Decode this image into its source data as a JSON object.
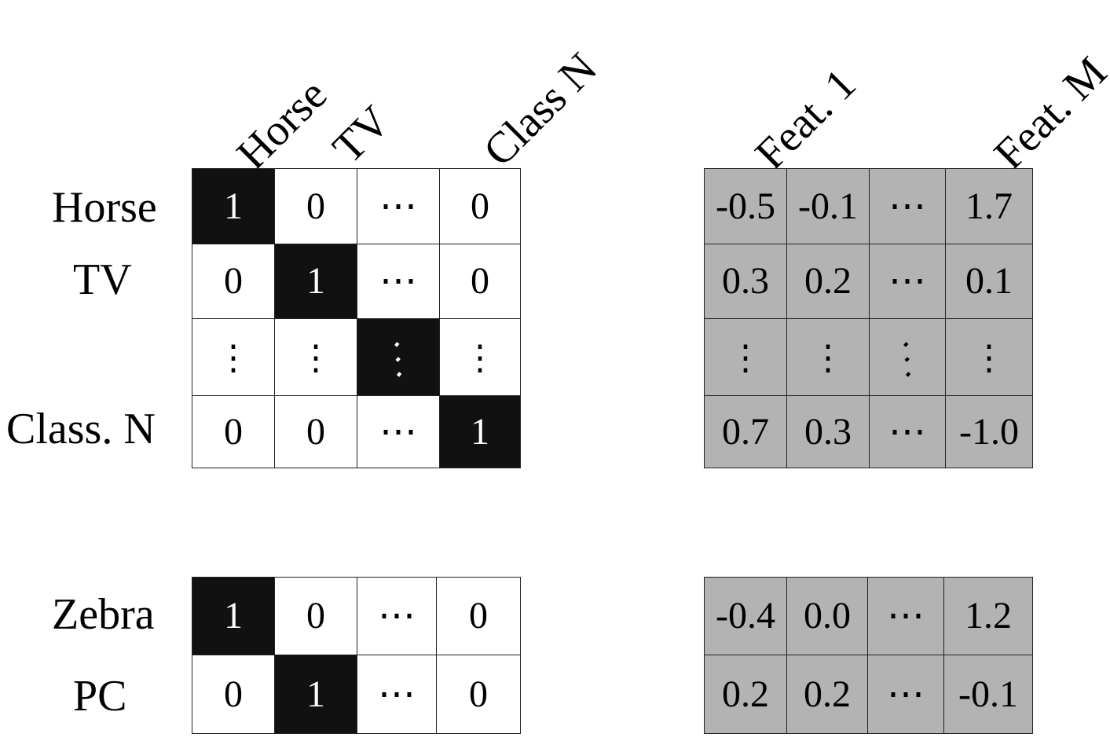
{
  "column_labels_classes": [
    "Horse",
    "TV",
    "Class N"
  ],
  "column_labels_features": [
    "Feat. 1",
    "Feat. M"
  ],
  "top_block": {
    "row_labels": [
      "Horse",
      "TV",
      "",
      "Class. N"
    ],
    "onehot_rows": [
      [
        "1",
        "0",
        "⋯",
        "0"
      ],
      [
        "0",
        "1",
        "⋯",
        "0"
      ],
      [
        "⋮",
        "⋮",
        "⋱",
        "⋮"
      ],
      [
        "0",
        "0",
        "⋯",
        "1"
      ]
    ],
    "feature_rows": [
      [
        "-0.5",
        "-0.1",
        "⋯",
        "1.7"
      ],
      [
        "0.3",
        "0.2",
        "⋯",
        "0.1"
      ],
      [
        "⋮",
        "⋮",
        "⋱",
        "⋮"
      ],
      [
        "0.7",
        "0.3",
        "⋯",
        "-1.0"
      ]
    ]
  },
  "bottom_block": {
    "row_labels": [
      "Zebra",
      "PC"
    ],
    "onehot_rows": [
      [
        "1",
        "0",
        "⋯",
        "0"
      ],
      [
        "0",
        "1",
        "⋯",
        "0"
      ]
    ],
    "feature_rows": [
      [
        "-0.4",
        "0.0",
        "⋯",
        "1.2"
      ],
      [
        "0.2",
        "0.2",
        "⋯",
        "-0.1"
      ]
    ]
  },
  "colors": {
    "hot_cell": "#111111",
    "feature_cell": "#b3b3b3",
    "border": "#222222"
  }
}
